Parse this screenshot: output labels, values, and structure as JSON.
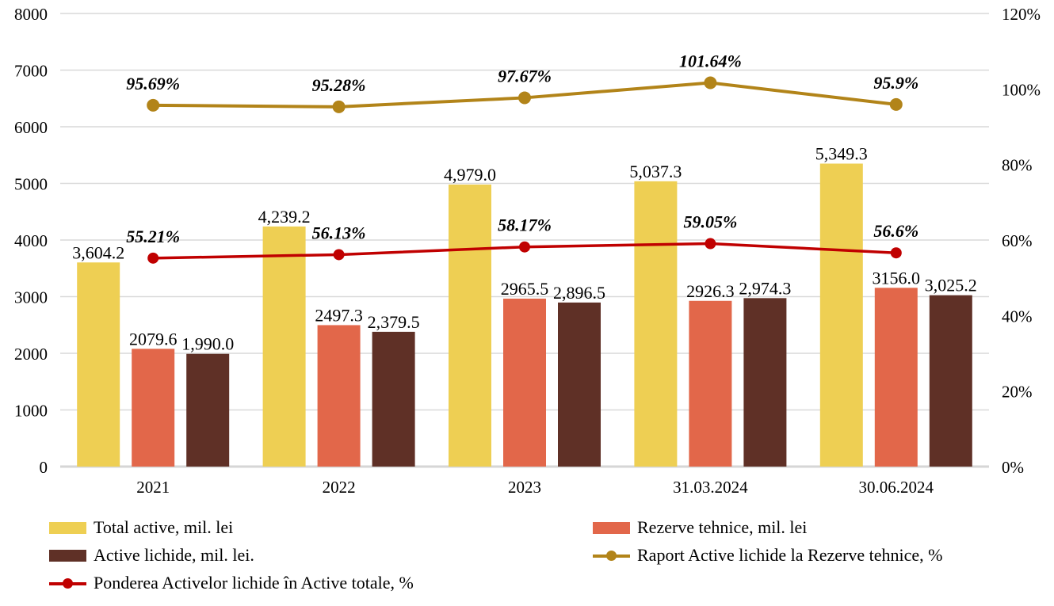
{
  "chart_data": {
    "type": "combo",
    "title": "",
    "categories": [
      "2021",
      "2022",
      "2023",
      "31.03.2024",
      "30.06.2024"
    ],
    "left_axis": {
      "min": 0,
      "max": 8000,
      "step": 1000,
      "tick_labels": [
        "0",
        "1000",
        "2000",
        "3000",
        "4000",
        "5000",
        "6000",
        "7000",
        "8000"
      ]
    },
    "right_axis": {
      "min": 0,
      "max": 120,
      "step": 20,
      "tick_labels": [
        "0%",
        "20%",
        "40%",
        "60%",
        "80%",
        "100%",
        "120%"
      ]
    },
    "grid": true,
    "grid_color": "#D9D9D9",
    "baseline_color": "#D6D6D6",
    "bar_series": [
      {
        "name": "Total active, mil. lei",
        "color": "#EECF53",
        "values": [
          3604.2,
          4239.2,
          4979.0,
          5037.3,
          5349.3
        ],
        "labels": [
          "3,604.2",
          "4,239.2",
          "4,979.0",
          "5,037.3",
          "5,349.3"
        ]
      },
      {
        "name": "Rezerve tehnice, mil. lei",
        "color": "#E2674A",
        "values": [
          2079.6,
          2497.3,
          2965.5,
          2926.3,
          3156.0
        ],
        "labels": [
          "2079.6",
          "2497.3",
          "2965.5",
          "2926.3",
          "3156.0"
        ]
      },
      {
        "name": "Active lichide, mil. lei.",
        "color": "#5F3026",
        "values": [
          1990.0,
          2379.5,
          2896.5,
          2974.3,
          3025.2
        ],
        "labels": [
          "1,990.0",
          "2,379.5",
          "2,896.5",
          "2,974.3",
          "3,025.2"
        ]
      }
    ],
    "line_series": [
      {
        "name": "Raport Active lichide la Rezerve tehnice, %",
        "color": "#B28419",
        "axis": "right",
        "values": [
          95.69,
          95.28,
          97.67,
          101.64,
          95.9
        ],
        "labels": [
          "95.69%",
          "95.28%",
          "97.67%",
          "101.64%",
          "95.9%"
        ]
      },
      {
        "name": "Ponderea Activelor lichide în Active totale, %",
        "color": "#C00000",
        "axis": "right",
        "values": [
          55.21,
          56.13,
          58.17,
          59.05,
          56.6
        ],
        "labels": [
          "55.21%",
          "56.13%",
          "58.17%",
          "59.05%",
          "56.6%"
        ]
      }
    ],
    "legend_position": "bottom"
  },
  "legend": {
    "items": [
      {
        "label": "Total active, mil. lei",
        "swatch": "bar",
        "color": "#EECF53"
      },
      {
        "label": "Rezerve tehnice, mil. lei",
        "swatch": "bar",
        "color": "#E2674A"
      },
      {
        "label": "Active lichide, mil. lei.",
        "swatch": "bar",
        "color": "#5F3026"
      },
      {
        "label": "Raport Active lichide la Rezerve tehnice, %",
        "swatch": "line",
        "color": "#B28419"
      },
      {
        "label": "Ponderea Activelor lichide în Active totale, %",
        "swatch": "line",
        "color": "#C00000"
      }
    ]
  }
}
